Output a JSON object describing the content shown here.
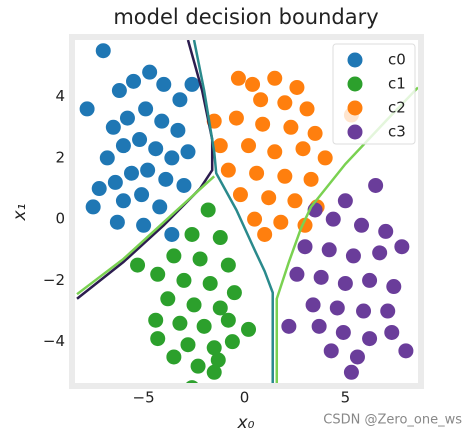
{
  "chart_data": {
    "type": "scatter",
    "title": "model decision boundary",
    "xlabel": "x₀",
    "ylabel": "x₁",
    "xlim": [
      -8.4,
      8.6
    ],
    "ylim": [
      -5.35,
      5.85
    ],
    "xticks": [
      {
        "value": -5,
        "label": "−5"
      },
      0,
      5
    ],
    "yticks": [
      {
        "value": -4,
        "label": "−4"
      },
      {
        "value": -2,
        "label": "−2"
      },
      0,
      2,
      4
    ],
    "legend": "upper right",
    "series": [
      {
        "name": "c0",
        "color": "#1f77b4",
        "x": [
          -7.0,
          -7.8,
          -6.2,
          -5.5,
          -4.7,
          -4.0,
          -3.2,
          -6.5,
          -5.8,
          -4.9,
          -4.1,
          -3.3,
          -2.8,
          -6.8,
          -6.0,
          -5.2,
          -4.4,
          -3.6,
          -6.4,
          -5.6,
          -4.8,
          -3.9,
          -3.0,
          -7.5,
          -6.0,
          -5.1,
          -4.2,
          -6.3,
          -5.0,
          -3.6,
          -2.6,
          -7.2
        ],
        "y": [
          5.5,
          3.6,
          4.2,
          4.5,
          4.8,
          4.4,
          3.9,
          3.0,
          3.3,
          3.6,
          3.2,
          2.9,
          2.2,
          2.0,
          2.4,
          2.6,
          2.3,
          2.0,
          1.2,
          1.5,
          1.6,
          1.3,
          1.1,
          0.4,
          0.6,
          0.8,
          0.4,
          -0.1,
          -0.2,
          -0.5,
          4.4,
          1.0
        ]
      },
      {
        "name": "c1",
        "color": "#2ca02c",
        "x": [
          -1.8,
          -2.6,
          -1.2,
          -3.5,
          -2.2,
          -0.8,
          -5.3,
          -4.3,
          -3.0,
          -1.7,
          -0.5,
          -3.8,
          -2.5,
          -1.2,
          -4.4,
          -3.2,
          -2.0,
          -0.8,
          -4.3,
          -2.8,
          -1.5,
          -0.6,
          -3.5,
          -2.3,
          -1.3,
          -2.6,
          -1.5,
          0.2
        ],
        "y": [
          0.3,
          -0.5,
          -0.6,
          -1.2,
          -1.3,
          -1.5,
          -1.5,
          -1.8,
          -2.0,
          -2.1,
          -2.4,
          -2.6,
          -2.8,
          -2.9,
          -3.3,
          -3.4,
          -3.5,
          -3.3,
          -3.9,
          -4.1,
          -4.2,
          -4.0,
          -4.5,
          -4.8,
          -4.6,
          -5.5,
          -5.0,
          -3.6
        ]
      },
      {
        "name": "c2",
        "color": "#ff7f0e",
        "x": [
          -0.3,
          0.4,
          1.5,
          2.6,
          0.8,
          2.0,
          3.1,
          5.3,
          -1.5,
          -0.4,
          0.9,
          2.3,
          3.5,
          -1.2,
          0.2,
          1.5,
          2.9,
          4.0,
          -0.8,
          0.6,
          2.0,
          3.3,
          -0.2,
          1.2,
          2.5,
          3.6,
          0.5,
          1.8,
          1.0,
          3.0
        ],
        "y": [
          4.6,
          4.4,
          4.6,
          4.3,
          3.9,
          3.8,
          3.6,
          3.4,
          3.2,
          3.3,
          3.1,
          3.0,
          2.8,
          2.4,
          2.4,
          2.2,
          2.3,
          2.0,
          1.6,
          1.5,
          1.4,
          1.3,
          0.8,
          0.7,
          0.6,
          0.4,
          0.0,
          -0.1,
          -0.5,
          -0.2
        ]
      },
      {
        "name": "c3",
        "color": "#6a3d9a",
        "x": [
          6.5,
          5.0,
          3.5,
          4.4,
          5.8,
          7.0,
          3.0,
          4.2,
          5.4,
          6.7,
          7.8,
          2.6,
          3.8,
          5.0,
          6.2,
          7.4,
          3.4,
          4.6,
          5.9,
          7.1,
          3.7,
          4.9,
          6.2,
          7.3,
          4.3,
          5.6,
          8.0,
          2.2,
          5.3
        ],
        "y": [
          1.1,
          0.6,
          0.3,
          0.0,
          -0.2,
          -0.4,
          -0.9,
          -1.0,
          -1.2,
          -1.1,
          -0.9,
          -1.8,
          -1.9,
          -2.1,
          -2.0,
          -2.2,
          -2.8,
          -2.9,
          -3.0,
          -3.0,
          -3.5,
          -3.7,
          -3.9,
          -3.7,
          -4.3,
          -4.5,
          -4.3,
          -3.5,
          -5.0
        ]
      }
    ],
    "boundaries": [
      {
        "color": "#2c1d4f",
        "x": [
          -8.3,
          -6,
          -4,
          -2.2,
          -1.6,
          -1.6,
          -2.1,
          -2.8
        ],
        "y": [
          -2.6,
          -1.4,
          -0.2,
          1.0,
          1.6,
          2.6,
          4.2,
          5.85
        ]
      },
      {
        "color": "#2a8a8c",
        "x": [
          -2.5,
          -2.0,
          -1.5,
          -1.4,
          -0.4,
          0.5,
          1.0,
          1.4,
          1.4
        ],
        "y": [
          5.85,
          4.2,
          2.2,
          1.5,
          0.3,
          -1.0,
          -1.7,
          -2.4,
          -5.35
        ]
      },
      {
        "color": "#7ad151",
        "x": [
          -8.3,
          -6,
          -4,
          -2,
          -1.5
        ],
        "y": [
          -2.45,
          -1.3,
          -0.1,
          1.1,
          1.4
        ]
      },
      {
        "color": "#7ad151",
        "x": [
          1.6,
          1.6,
          2.2,
          2.8,
          3.3,
          5.0,
          7.0,
          8.6
        ],
        "y": [
          -5.35,
          -2.6,
          -1.4,
          -0.3,
          0.4,
          1.8,
          3.2,
          4.3
        ]
      }
    ],
    "watermark": "CSDN @Zero_one_ws"
  }
}
